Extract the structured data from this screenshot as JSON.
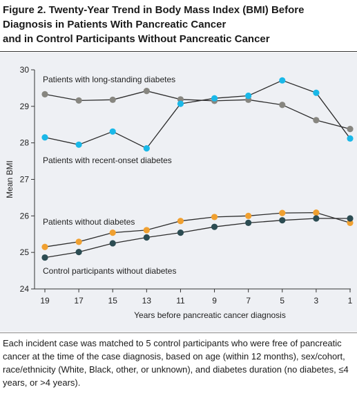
{
  "figure": {
    "title_lines": [
      "Figure 2. Twenty-Year Trend in Body Mass Index (BMI) Before",
      "Diagnosis in Patients With Pancreatic Cancer",
      "and in Control Participants Without Pancreatic Cancer"
    ],
    "caption": "Each incident case was matched to 5 control participants who were free of pancreatic cancer at the time of the case diagnosis, based on age (within 12 months), sex/cohort, race/ethnicity (White, Black, other, or unknown), and diabetes duration (no diabetes, ≤4 years, or >4 years)."
  },
  "chart_data": {
    "type": "line",
    "xlabel": "Years before pancreatic cancer diagnosis",
    "ylabel": "Mean BMI",
    "x": [
      19,
      17,
      15,
      13,
      11,
      9,
      7,
      5,
      3,
      1
    ],
    "xlim": [
      19,
      1
    ],
    "ylim": [
      24,
      30
    ],
    "yticks": [
      24,
      25,
      26,
      27,
      28,
      29,
      30
    ],
    "grid": false,
    "series": [
      {
        "name": "Patients with long-standing diabetes",
        "color": "#878680",
        "values": [
          29.33,
          29.16,
          29.18,
          29.42,
          29.19,
          29.15,
          29.18,
          29.04,
          28.62,
          28.38
        ]
      },
      {
        "name": "Patients with recent-onset diabetes",
        "color": "#1ab8e8",
        "values": [
          28.15,
          27.95,
          28.31,
          27.85,
          29.07,
          29.22,
          29.29,
          29.71,
          29.37,
          28.12
        ]
      },
      {
        "name": "Patients without diabetes",
        "color": "#f0a030",
        "values": [
          25.15,
          25.29,
          25.54,
          25.61,
          25.86,
          25.97,
          26.0,
          26.08,
          26.09,
          25.81
        ]
      },
      {
        "name": "Control participants without diabetes",
        "color": "#2c4c52",
        "values": [
          24.86,
          25.01,
          25.25,
          25.41,
          25.54,
          25.7,
          25.81,
          25.88,
          25.93,
          25.93
        ]
      }
    ]
  }
}
